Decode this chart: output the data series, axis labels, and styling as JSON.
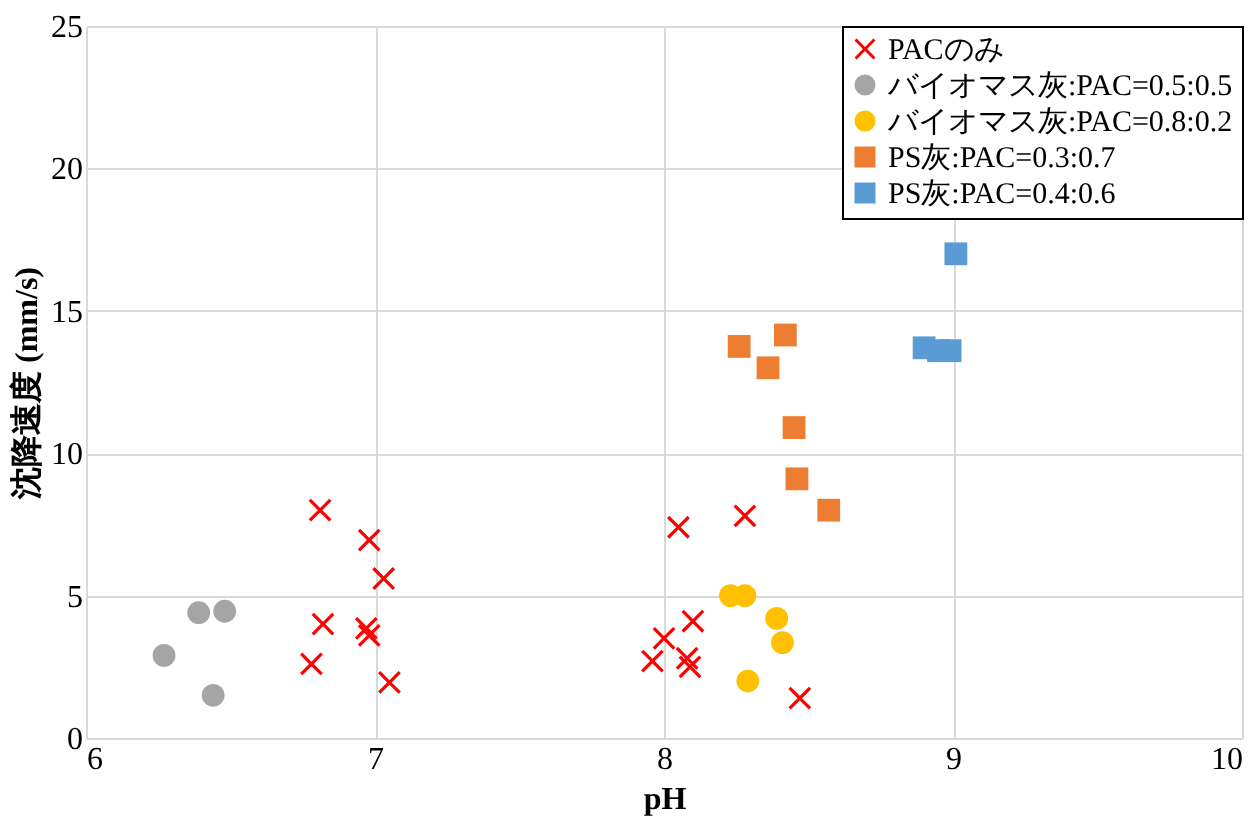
{
  "chart_data": {
    "type": "scatter",
    "xlabel": "pH",
    "ylabel": "沈降速度 (mm/s)",
    "xlim": [
      6,
      10
    ],
    "xticks": [
      6,
      7,
      8,
      9,
      10
    ],
    "ylim": [
      0,
      25
    ],
    "yticks": [
      0,
      5,
      10,
      15,
      20,
      25
    ],
    "grid": true,
    "legend": "top right",
    "series": [
      {
        "name": "PACのみ",
        "color": "#ff0000",
        "marker": "cross",
        "x": [
          6.81,
          6.98,
          7.03,
          6.82,
          6.97,
          6.98,
          6.78,
          7.05,
          8.05,
          8.28,
          8.1,
          8.0,
          7.96,
          8.08,
          8.09,
          8.47
        ],
        "values": [
          8.0,
          6.95,
          5.6,
          4.0,
          3.85,
          3.6,
          2.6,
          1.95,
          7.4,
          7.8,
          4.1,
          3.5,
          2.7,
          2.8,
          2.5,
          1.4
        ]
      },
      {
        "name": "バイオマス灰:PAC=0.5:0.5",
        "color": "#a5a5a5",
        "marker": "circle",
        "x": [
          6.27,
          6.39,
          6.48,
          6.44
        ],
        "values": [
          2.9,
          4.4,
          4.45,
          1.5
        ]
      },
      {
        "name": "バイオマス灰:PAC=0.8:0.2",
        "color": "#ffc000",
        "marker": "circle",
        "x": [
          8.23,
          8.28,
          8.39,
          8.41,
          8.29
        ],
        "values": [
          5.0,
          5.0,
          4.2,
          3.35,
          2.0
        ]
      },
      {
        "name": "PS灰:PAC=0.3:0.7",
        "color": "#ed7d31",
        "marker": "square",
        "x": [
          8.26,
          8.42,
          8.36,
          8.45,
          8.46,
          8.57
        ],
        "values": [
          13.75,
          14.15,
          13.0,
          10.9,
          9.1,
          8.0
        ]
      },
      {
        "name": "PS灰:PAC=0.4:0.6",
        "color": "#5b9bd5",
        "marker": "square",
        "x": [
          9.01,
          8.9,
          8.99,
          8.95
        ],
        "values": [
          17.0,
          13.7,
          13.6,
          13.6
        ]
      }
    ]
  }
}
